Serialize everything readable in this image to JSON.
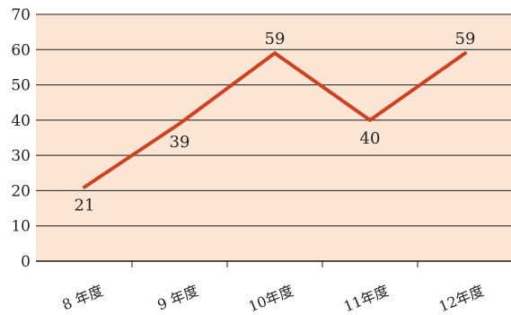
{
  "chart_data": {
    "type": "line",
    "categories": [
      "8 年度",
      "9 年度",
      "10年度",
      "11年度",
      "12年度"
    ],
    "series": [
      {
        "values": [
          21,
          39,
          59,
          40,
          59
        ]
      }
    ],
    "data_labels": [
      "21",
      "39",
      "59",
      "40",
      "59"
    ],
    "y_ticks": [
      "0",
      "10",
      "20",
      "30",
      "40",
      "50",
      "60",
      "70"
    ],
    "ylim": [
      0,
      70
    ],
    "grid": true,
    "colors": {
      "line": "#d2401f",
      "plot_bg": "#fbe6d6",
      "grid": "#1a1a1a"
    }
  }
}
